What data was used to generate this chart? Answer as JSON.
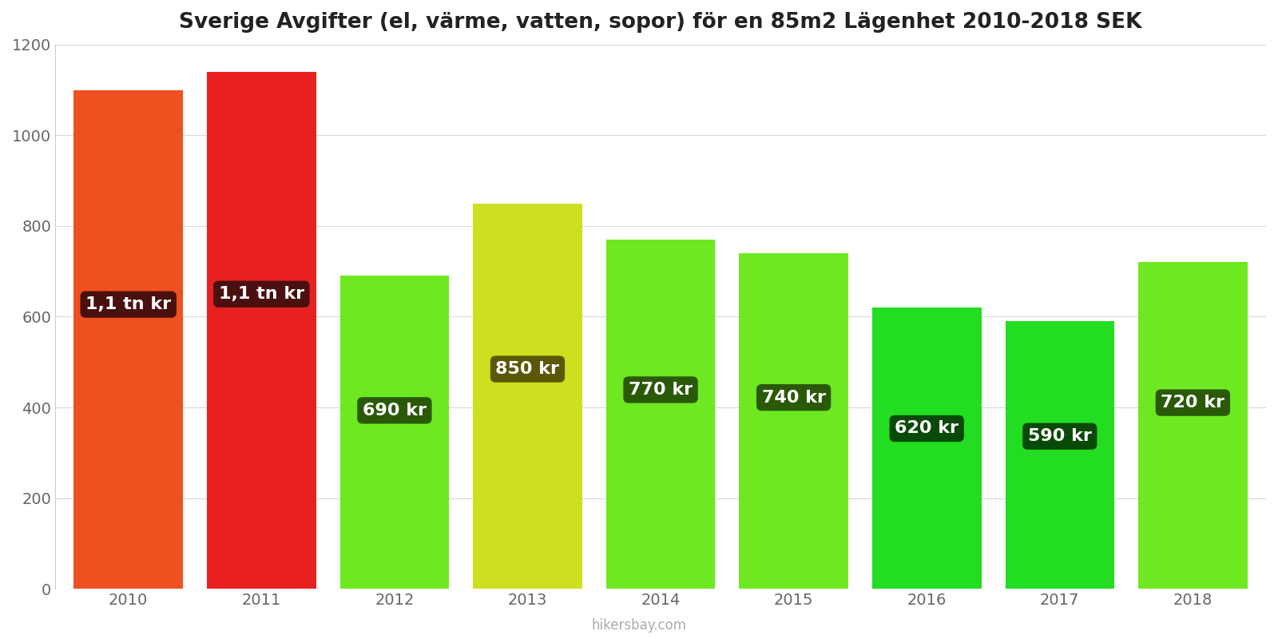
{
  "title": "Sverige Avgifter (el, värme, vatten, sopor) för en 85m2 Lägenhet 2010-2018 SEK",
  "years": [
    2010,
    2011,
    2012,
    2013,
    2014,
    2015,
    2016,
    2017,
    2018
  ],
  "values": [
    1100,
    1140,
    690,
    850,
    770,
    740,
    620,
    590,
    720
  ],
  "labels": [
    "1,1 tn kr",
    "1,1 tn kr",
    "690 kr",
    "850 kr",
    "770 kr",
    "740 kr",
    "620 kr",
    "590 kr",
    "720 kr"
  ],
  "bar_colors": [
    "#f05020",
    "#e82020",
    "#6ee820",
    "#cce020",
    "#6ee820",
    "#6ee820",
    "#22dd22",
    "#22dd22",
    "#6ee820"
  ],
  "label_bg_colors": [
    "#4a1010",
    "#4a1010",
    "#2a5a08",
    "#5a5808",
    "#2a5a08",
    "#2a5a08",
    "#0a4a08",
    "#0a4a08",
    "#2a5a08"
  ],
  "ylim": [
    0,
    1200
  ],
  "yticks": [
    0,
    200,
    400,
    600,
    800,
    1000,
    1200
  ],
  "background_color": "#ffffff",
  "grid_color": "#d8d8d8",
  "watermark": "hikersbay.com",
  "title_fontsize": 19,
  "tick_fontsize": 14,
  "label_fontsize": 16,
  "bar_width": 0.82
}
